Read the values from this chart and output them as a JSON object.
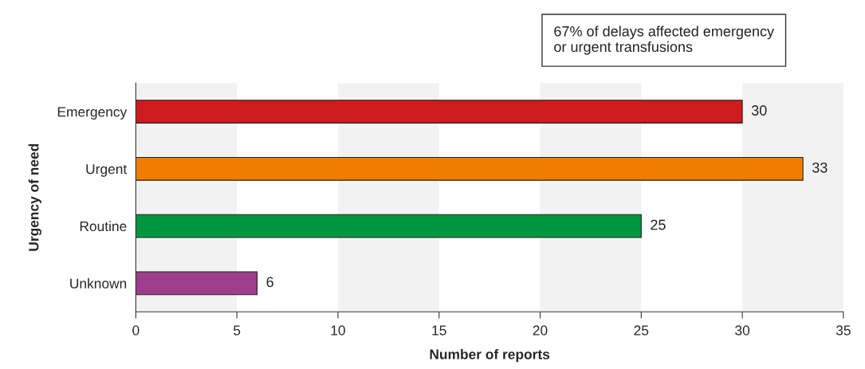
{
  "chart_data": {
    "type": "bar",
    "orientation": "horizontal",
    "xlabel": "Number of reports",
    "ylabel": "Urgency of need",
    "categories": [
      "Emergency",
      "Urgent",
      "Routine",
      "Unknown"
    ],
    "values": [
      30,
      33,
      25,
      6
    ],
    "colors": [
      "#cf1a1e",
      "#f07d00",
      "#00963f",
      "#9e3d8c"
    ],
    "data_labels": true,
    "xlim": [
      0,
      35
    ],
    "xticks": [
      0,
      5,
      10,
      15,
      20,
      25,
      30,
      35
    ],
    "bands": [
      {
        "axis": "x",
        "from": 0,
        "to": 5,
        "color": "#f2f2f2"
      },
      {
        "axis": "x",
        "from": 10,
        "to": 15,
        "color": "#f2f2f2"
      },
      {
        "axis": "x",
        "from": 20,
        "to": 25,
        "color": "#f2f2f2"
      },
      {
        "axis": "x",
        "from": 30,
        "to": 35,
        "color": "#f2f2f2"
      }
    ],
    "annotations": [
      "67% of delays affected emergency\nor urgent transfusions"
    ]
  }
}
